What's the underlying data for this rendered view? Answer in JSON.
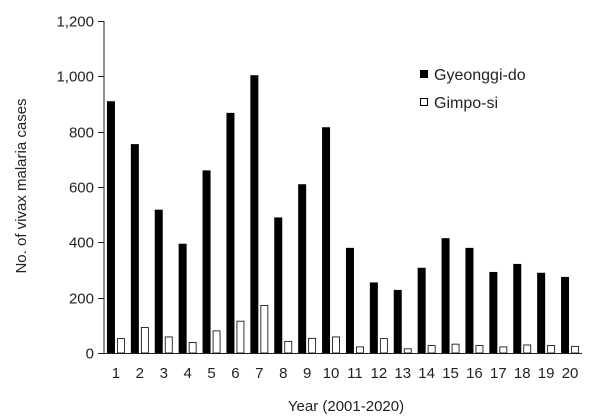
{
  "chart_data": {
    "type": "bar",
    "title": "",
    "xlabel": "Year (2001-2020)",
    "ylabel": "No. of vivax malaria cases",
    "ylim": [
      0,
      1200
    ],
    "yticks": [
      0,
      200,
      400,
      600,
      800,
      1000,
      1200
    ],
    "ytick_labels": [
      "0",
      "200",
      "400",
      "600",
      "800",
      "1,000",
      "1,200"
    ],
    "categories": [
      "1",
      "2",
      "3",
      "4",
      "5",
      "6",
      "7",
      "8",
      "9",
      "10",
      "11",
      "12",
      "13",
      "14",
      "15",
      "16",
      "17",
      "18",
      "19",
      "20"
    ],
    "series": [
      {
        "name": "Gyeonggi-do",
        "color": "#000000",
        "values": [
          910,
          755,
          518,
          395,
          660,
          868,
          1004,
          490,
          610,
          816,
          380,
          255,
          228,
          308,
          415,
          380,
          293,
          322,
          290,
          275
        ]
      },
      {
        "name": "Gimpo-si",
        "color": "#ffffff",
        "values": [
          52,
          92,
          58,
          38,
          80,
          115,
          172,
          42,
          53,
          58,
          22,
          52,
          15,
          27,
          32,
          27,
          22,
          29,
          27,
          24
        ]
      }
    ],
    "legend_position": "top-right",
    "grid": false
  }
}
